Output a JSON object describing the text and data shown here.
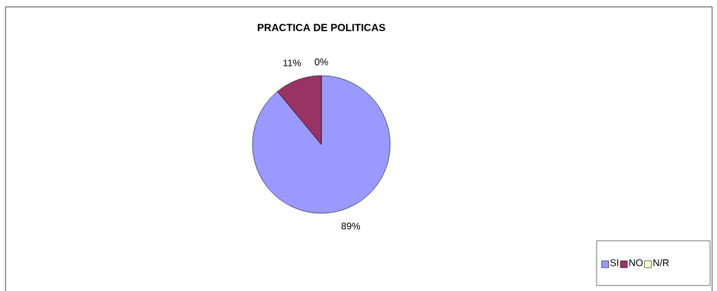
{
  "chart_data": {
    "type": "pie",
    "title": "PRACTICA DE POLITICAS",
    "categories": [
      "SI",
      "NO",
      "N/R"
    ],
    "values": [
      89,
      11,
      0
    ],
    "value_labels": [
      "89%",
      "11%",
      "0%"
    ],
    "colors": [
      "#9999ff",
      "#993366",
      "#ffffcc"
    ],
    "legend": "bottom right"
  }
}
